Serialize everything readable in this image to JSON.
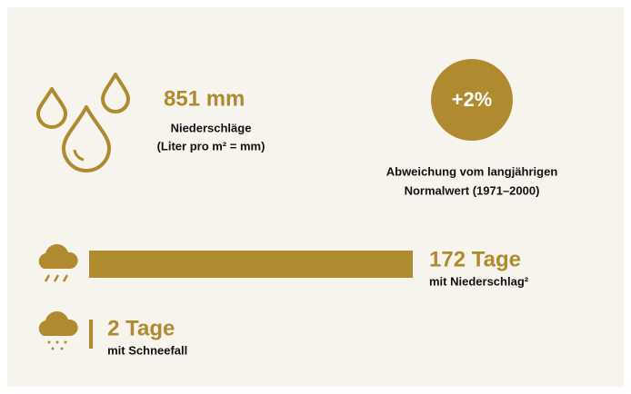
{
  "precipitation": {
    "amount": "851 mm",
    "label": "Niederschläge",
    "note": "(Liter pro m² = mm)"
  },
  "deviation": {
    "value": "+2%",
    "label": [
      "Abweichung vom langjährigen",
      "Normalwert (1971–2000)"
    ]
  },
  "days": [
    {
      "value": 172,
      "value_label": "172 Tage",
      "label": "mit Niederschlag²"
    },
    {
      "value": 2,
      "value_label": "2 Tage",
      "label": "mit Schneefall"
    }
  ]
}
